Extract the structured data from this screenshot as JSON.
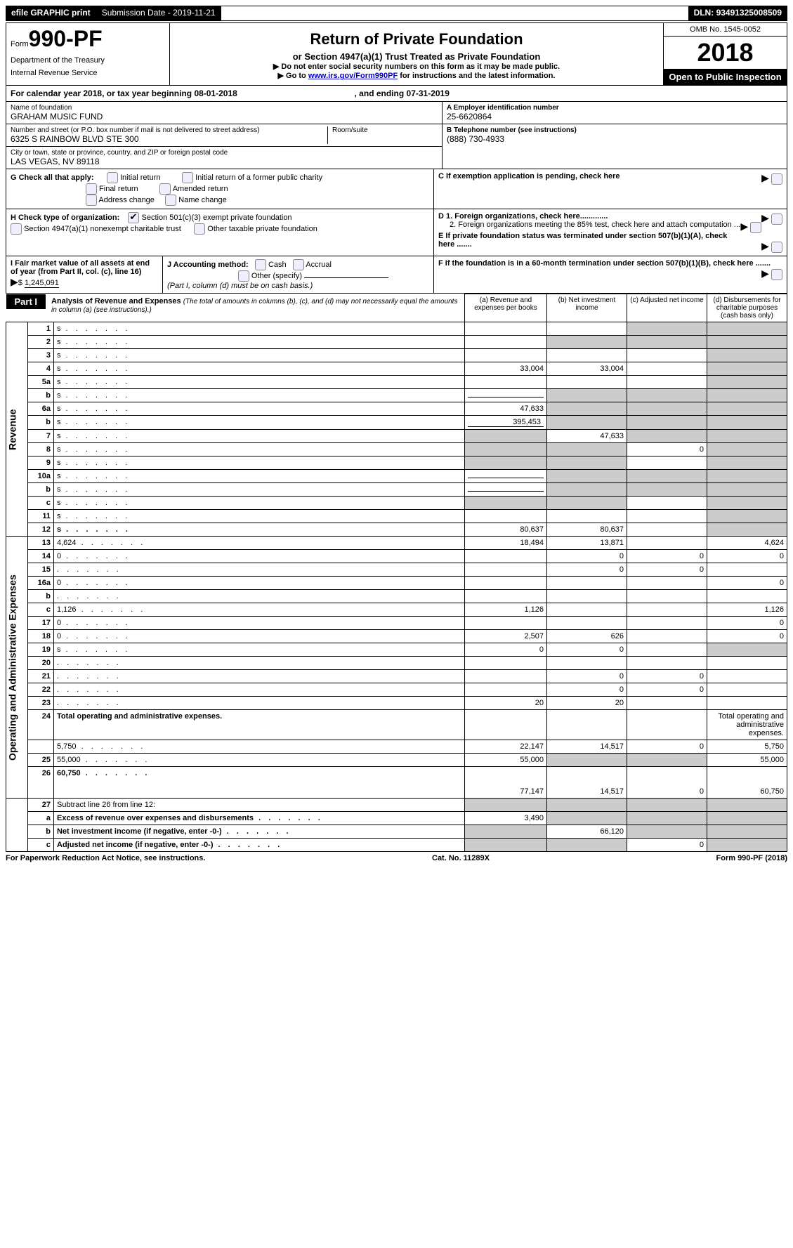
{
  "topbar": {
    "efile": "efile GRAPHIC print",
    "subdate_label": "Submission Date - ",
    "subdate": "2019-11-21",
    "dln_label": "DLN: ",
    "dln": "93491325008509"
  },
  "header": {
    "form_word": "Form",
    "form_no": "990-PF",
    "dept1": "Department of the Treasury",
    "dept2": "Internal Revenue Service",
    "title": "Return of Private Foundation",
    "sub1": "or Section 4947(a)(1) Trust Treated as Private Foundation",
    "sub2": "▶ Do not enter social security numbers on this form as it may be made public.",
    "sub3_pre": "▶ Go to ",
    "sub3_link": "www.irs.gov/Form990PF",
    "sub3_post": " for instructions and the latest information.",
    "omb": "OMB No. 1545-0052",
    "year": "2018",
    "inspect": "Open to Public Inspection"
  },
  "calyear": {
    "text": "For calendar year 2018, or tax year beginning 08-01-2018",
    "mid": ", and ending 07-31-2019"
  },
  "entity": {
    "name_label": "Name of foundation",
    "name": "GRAHAM MUSIC FUND",
    "addr_label": "Number and street (or P.O. box number if mail is not delivered to street address)",
    "room_label": "Room/suite",
    "addr": "6325 S RAINBOW BLVD STE 300",
    "city_label": "City or town, state or province, country, and ZIP or foreign postal code",
    "city": "LAS VEGAS, NV  89118",
    "a_label": "A Employer identification number",
    "a_val": "25-6620864",
    "b_label": "B Telephone number (see instructions)",
    "b_val": "(888) 730-4933",
    "c_label": "C  If exemption application is pending, check here",
    "d1": "D 1. Foreign organizations, check here.............",
    "d2": "2. Foreign organizations meeting the 85% test, check here and attach computation ...",
    "e": "E  If private foundation status was terminated under section 507(b)(1)(A), check here .......",
    "f": "F  If the foundation is in a 60-month termination under section 507(b)(1)(B), check here .......",
    "g_label": "G Check all that apply:",
    "g_opts": [
      "Initial return",
      "Initial return of a former public charity",
      "Final return",
      "Amended return",
      "Address change",
      "Name change"
    ],
    "h_label": "H Check type of organization:",
    "h1": "Section 501(c)(3) exempt private foundation",
    "h2": "Section 4947(a)(1) nonexempt charitable trust",
    "h3": "Other taxable private foundation",
    "i_label": "I Fair market value of all assets at end of year (from Part II, col. (c), line 16)",
    "i_val": "1,245,091",
    "j_label": "J Accounting method:",
    "j1": "Cash",
    "j2": "Accrual",
    "j3": "Other (specify)",
    "j_note": "(Part I, column (d) must be on cash basis.)"
  },
  "part1": {
    "tag": "Part I",
    "title": "Analysis of Revenue and Expenses",
    "note": "(The total of amounts in columns (b), (c), and (d) may not necessarily equal the amounts in column (a) (see instructions).)",
    "cols": {
      "a": "(a)    Revenue and expenses per books",
      "b": "(b)    Net investment income",
      "c": "(c)    Adjusted net income",
      "d": "(d)    Disbursements for charitable purposes (cash basis only)"
    }
  },
  "vert": {
    "rev": "Revenue",
    "exp": "Operating and Administrative Expenses"
  },
  "rows": [
    {
      "n": "1",
      "d": "s",
      "a": "",
      "b": "",
      "c": "s"
    },
    {
      "n": "2",
      "d": "s",
      "a": "",
      "b": "s",
      "c": "s"
    },
    {
      "n": "3",
      "d": "s",
      "a": "",
      "b": "",
      "c": ""
    },
    {
      "n": "4",
      "d": "s",
      "a": "33,004",
      "b": "33,004",
      "c": ""
    },
    {
      "n": "5a",
      "d": "s",
      "a": "",
      "b": "",
      "c": ""
    },
    {
      "n": "b",
      "d": "s",
      "a": "UL",
      "b": "s",
      "c": "s"
    },
    {
      "n": "6a",
      "d": "s",
      "a": "47,633",
      "b": "s",
      "c": "s"
    },
    {
      "n": "b",
      "d": "s",
      "a": "UL395",
      "b": "s",
      "c": "s"
    },
    {
      "n": "7",
      "d": "s",
      "a": "s",
      "b": "47,633",
      "c": "s"
    },
    {
      "n": "8",
      "d": "s",
      "a": "s",
      "b": "s",
      "c": "0"
    },
    {
      "n": "9",
      "d": "s",
      "a": "s",
      "b": "s",
      "c": ""
    },
    {
      "n": "10a",
      "d": "s",
      "a": "UL",
      "b": "s",
      "c": "s"
    },
    {
      "n": "b",
      "d": "s",
      "a": "UL",
      "b": "s",
      "c": "s"
    },
    {
      "n": "c",
      "d": "s",
      "a": "s",
      "b": "s",
      "c": ""
    },
    {
      "n": "11",
      "d": "s",
      "a": "",
      "b": "",
      "c": ""
    },
    {
      "n": "12",
      "d": "s",
      "a": "80,637",
      "b": "80,637",
      "c": "",
      "bold": true
    }
  ],
  "rows2": [
    {
      "n": "13",
      "d": "4,624",
      "a": "18,494",
      "b": "13,871",
      "c": ""
    },
    {
      "n": "14",
      "d": "0",
      "a": "",
      "b": "0",
      "c": "0"
    },
    {
      "n": "15",
      "d": "",
      "a": "",
      "b": "0",
      "c": "0"
    },
    {
      "n": "16a",
      "d": "0",
      "a": "",
      "b": "",
      "c": ""
    },
    {
      "n": "b",
      "d": "",
      "a": "",
      "b": "",
      "c": ""
    },
    {
      "n": "c",
      "d": "1,126",
      "a": "1,126",
      "b": "",
      "c": ""
    },
    {
      "n": "17",
      "d": "0",
      "a": "",
      "b": "",
      "c": ""
    },
    {
      "n": "18",
      "d": "0",
      "a": "2,507",
      "b": "626",
      "c": ""
    },
    {
      "n": "19",
      "d": "s",
      "a": "0",
      "b": "0",
      "c": ""
    },
    {
      "n": "20",
      "d": "",
      "a": "",
      "b": "",
      "c": ""
    },
    {
      "n": "21",
      "d": "",
      "a": "",
      "b": "0",
      "c": "0"
    },
    {
      "n": "22",
      "d": "",
      "a": "",
      "b": "0",
      "c": "0"
    },
    {
      "n": "23",
      "d": "",
      "a": "20",
      "b": "20",
      "c": ""
    },
    {
      "n": "24",
      "d": "Total operating and administrative expenses.",
      "bold": true,
      "nocols": true
    },
    {
      "n": "",
      "d": "5,750",
      "a": "22,147",
      "b": "14,517",
      "c": "0"
    },
    {
      "n": "25",
      "d": "55,000",
      "a": "55,000",
      "b": "s",
      "c": "s"
    },
    {
      "n": "26",
      "d": "60,750",
      "a": "77,147",
      "b": "14,517",
      "c": "0",
      "bold": true,
      "tall": true
    }
  ],
  "rows3": [
    {
      "n": "27",
      "d": "Subtract line 26 from line 12:"
    },
    {
      "n": "a",
      "d": "Excess of revenue over expenses and disbursements",
      "a": "3,490",
      "bold": true
    },
    {
      "n": "b",
      "d": "Net investment income (if negative, enter -0-)",
      "b": "66,120",
      "bold": true
    },
    {
      "n": "c",
      "d": "Adjusted net income (if negative, enter -0-)",
      "c": "0",
      "bold": true
    }
  ],
  "footer": {
    "left": "For Paperwork Reduction Act Notice, see instructions.",
    "mid": "Cat. No. 11289X",
    "right": "Form 990-PF (2018)"
  },
  "inline": {
    "val_395": "395,453"
  }
}
